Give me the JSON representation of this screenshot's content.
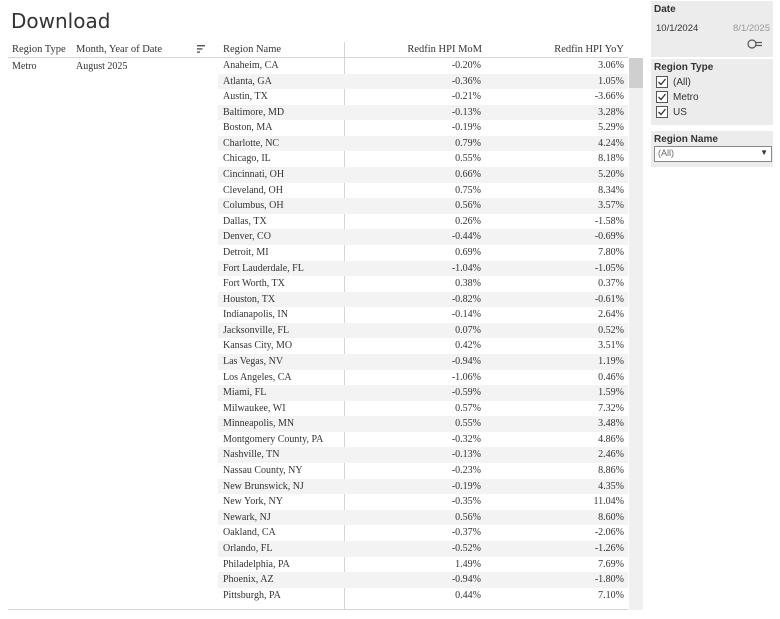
{
  "page": {
    "title": "Download"
  },
  "table": {
    "headers": {
      "region_type": "Region Type",
      "month_year": "Month, Year of Date",
      "region_name": "Region Name",
      "mom": "Redfin HPI MoM",
      "yoy": "Redfin HPI YoY"
    },
    "region_type_value": "Metro",
    "month_year_value": "August 2025",
    "rows": [
      {
        "name": "Anaheim, CA",
        "mom": "-0.20%",
        "yoy": "3.06%"
      },
      {
        "name": "Atlanta, GA",
        "mom": "-0.36%",
        "yoy": "1.05%"
      },
      {
        "name": "Austin, TX",
        "mom": "-0.21%",
        "yoy": "-3.66%"
      },
      {
        "name": "Baltimore, MD",
        "mom": "-0.13%",
        "yoy": "3.28%"
      },
      {
        "name": "Boston, MA",
        "mom": "-0.19%",
        "yoy": "5.29%"
      },
      {
        "name": "Charlotte, NC",
        "mom": "0.79%",
        "yoy": "4.24%"
      },
      {
        "name": "Chicago, IL",
        "mom": "0.55%",
        "yoy": "8.18%"
      },
      {
        "name": "Cincinnati, OH",
        "mom": "0.66%",
        "yoy": "5.20%"
      },
      {
        "name": "Cleveland, OH",
        "mom": "0.75%",
        "yoy": "8.34%"
      },
      {
        "name": "Columbus, OH",
        "mom": "0.56%",
        "yoy": "3.57%"
      },
      {
        "name": "Dallas, TX",
        "mom": "0.26%",
        "yoy": "-1.58%"
      },
      {
        "name": "Denver, CO",
        "mom": "-0.44%",
        "yoy": "-0.69%"
      },
      {
        "name": "Detroit, MI",
        "mom": "0.69%",
        "yoy": "7.80%"
      },
      {
        "name": "Fort Lauderdale, FL",
        "mom": "-1.04%",
        "yoy": "-1.05%"
      },
      {
        "name": "Fort Worth, TX",
        "mom": "0.38%",
        "yoy": "0.37%"
      },
      {
        "name": "Houston, TX",
        "mom": "-0.82%",
        "yoy": "-0.61%"
      },
      {
        "name": "Indianapolis, IN",
        "mom": "-0.14%",
        "yoy": "2.64%"
      },
      {
        "name": "Jacksonville, FL",
        "mom": "0.07%",
        "yoy": "0.52%"
      },
      {
        "name": "Kansas City, MO",
        "mom": "0.42%",
        "yoy": "3.51%"
      },
      {
        "name": "Las Vegas, NV",
        "mom": "-0.94%",
        "yoy": "1.19%"
      },
      {
        "name": "Los Angeles, CA",
        "mom": "-1.06%",
        "yoy": "0.46%"
      },
      {
        "name": "Miami, FL",
        "mom": "-0.59%",
        "yoy": "1.59%"
      },
      {
        "name": "Milwaukee, WI",
        "mom": "0.57%",
        "yoy": "7.32%"
      },
      {
        "name": "Minneapolis, MN",
        "mom": "0.55%",
        "yoy": "3.48%"
      },
      {
        "name": "Montgomery County, PA",
        "mom": "-0.32%",
        "yoy": "4.86%"
      },
      {
        "name": "Nashville, TN",
        "mom": "-0.13%",
        "yoy": "2.46%"
      },
      {
        "name": "Nassau County, NY",
        "mom": "-0.23%",
        "yoy": "8.86%"
      },
      {
        "name": "New Brunswick, NJ",
        "mom": "-0.19%",
        "yoy": "4.35%"
      },
      {
        "name": "New York, NY",
        "mom": "-0.35%",
        "yoy": "11.04%"
      },
      {
        "name": "Newark, NJ",
        "mom": "0.56%",
        "yoy": "8.60%"
      },
      {
        "name": "Oakland, CA",
        "mom": "-0.37%",
        "yoy": "-2.06%"
      },
      {
        "name": "Orlando, FL",
        "mom": "-0.52%",
        "yoy": "-1.26%"
      },
      {
        "name": "Philadelphia, PA",
        "mom": "1.49%",
        "yoy": "7.69%"
      },
      {
        "name": "Phoenix, AZ",
        "mom": "-0.94%",
        "yoy": "-1.80%"
      },
      {
        "name": "Pittsburgh, PA",
        "mom": "0.44%",
        "yoy": "7.10%"
      }
    ]
  },
  "filters": {
    "date": {
      "title": "Date",
      "start": "10/1/2024",
      "end": "8/1/2025"
    },
    "region_type": {
      "title": "Region Type",
      "options": [
        {
          "label": "(All)",
          "checked": true
        },
        {
          "label": "Metro",
          "checked": true
        },
        {
          "label": "US",
          "checked": true
        }
      ]
    },
    "region_name": {
      "title": "Region Name",
      "selected": "(All)"
    }
  }
}
